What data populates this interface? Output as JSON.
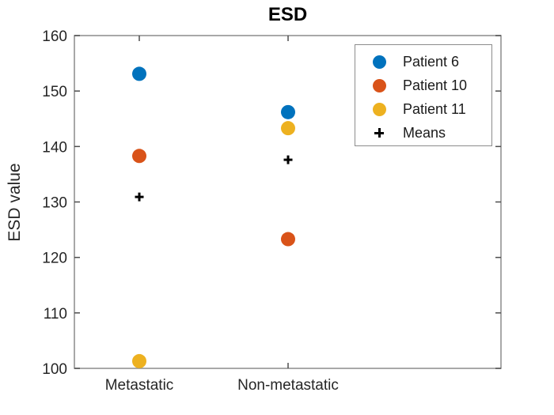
{
  "chart_data": {
    "type": "scatter",
    "title": "ESD",
    "xlabel": "",
    "ylabel": "ESD value",
    "categories": [
      "Metastatic",
      "Non-metastatic"
    ],
    "ylim": [
      100,
      160
    ],
    "yticks": [
      100,
      110,
      120,
      130,
      140,
      150,
      160
    ],
    "grid": false,
    "legend_position": "northeast",
    "series": [
      {
        "name": "Patient 6",
        "marker": "circle",
        "color": "#0072BD",
        "values": [
          153.1,
          146.2
        ]
      },
      {
        "name": "Patient 10",
        "marker": "circle",
        "color": "#D95319",
        "values": [
          138.3,
          123.3
        ]
      },
      {
        "name": "Patient 11",
        "marker": "circle",
        "color": "#EDB120",
        "values": [
          101.3,
          143.3
        ]
      },
      {
        "name": "Means",
        "marker": "plus",
        "color": "#000000",
        "values": [
          130.9,
          137.6
        ]
      }
    ],
    "colors": {
      "axis_box": "#8c8c8c",
      "tick_mark": "#4d4d4d",
      "tick_text": "#262626",
      "background": "#ffffff"
    }
  }
}
